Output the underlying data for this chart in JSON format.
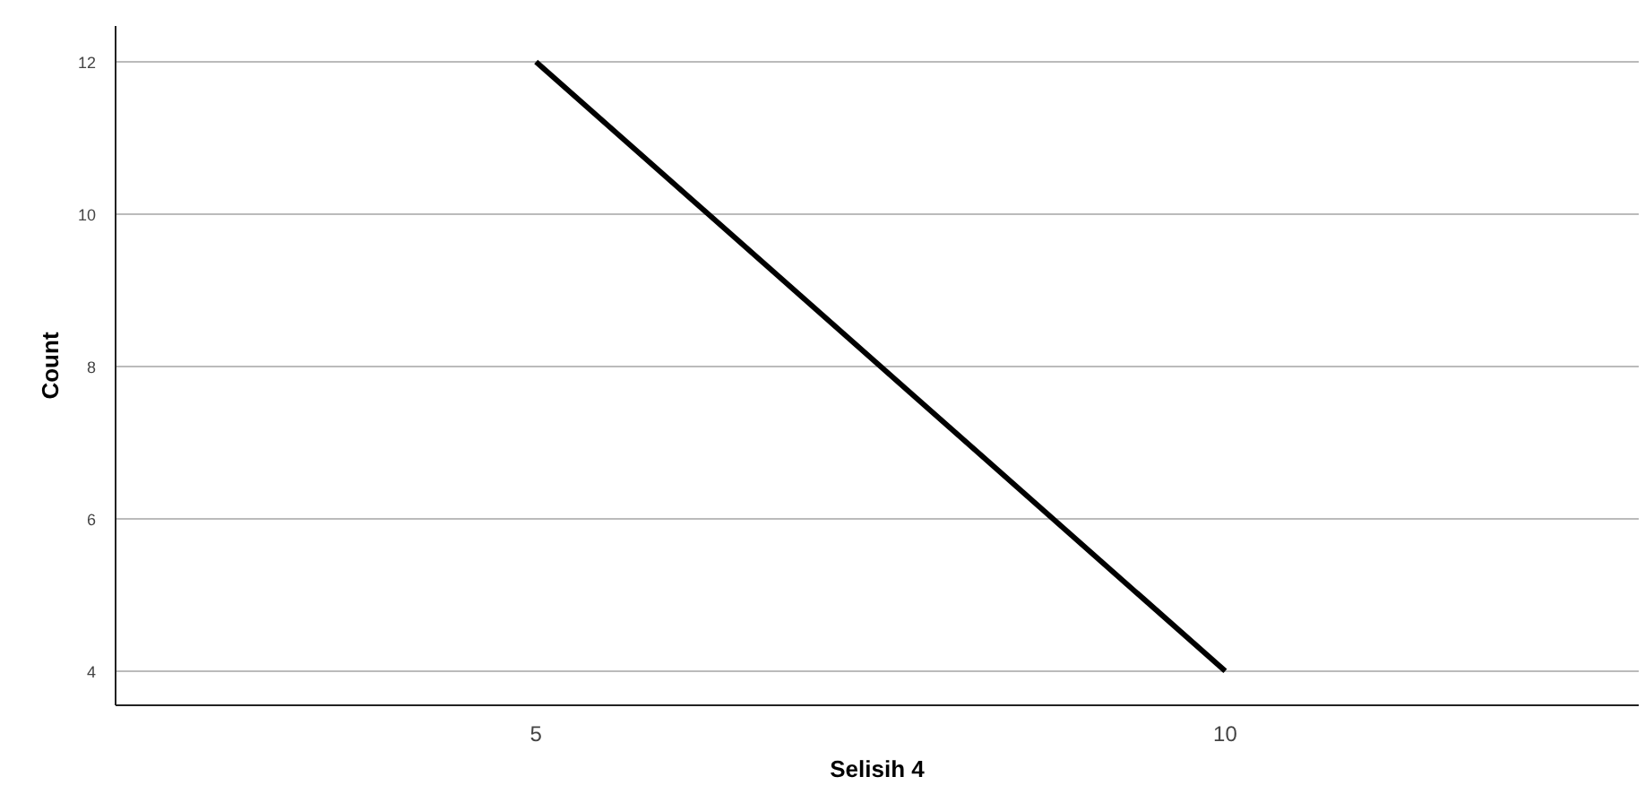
{
  "chart_data": {
    "type": "line",
    "xlabel": "Selisih 4",
    "ylabel": "Count",
    "categories": [
      "5",
      "10"
    ],
    "series": [
      {
        "color": "#000000",
        "values": [
          12,
          4
        ]
      }
    ],
    "ylim": [
      3.55,
      12.47
    ],
    "yticks": [
      4,
      6,
      8,
      10,
      12
    ],
    "grid": "y",
    "marker": "none",
    "line_style": "solid"
  }
}
